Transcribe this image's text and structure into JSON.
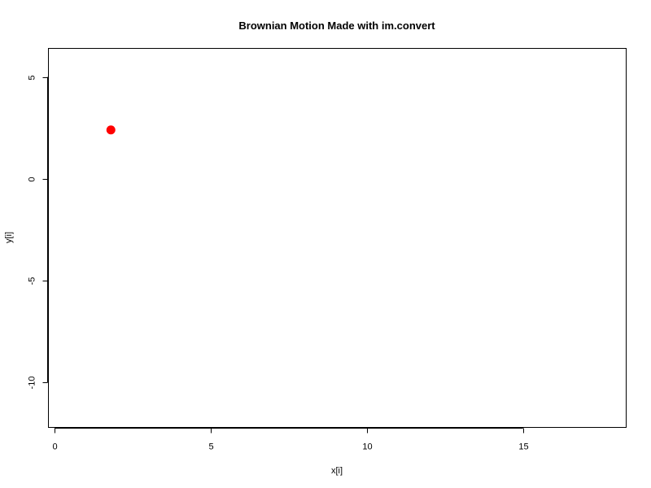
{
  "chart_data": {
    "type": "scatter",
    "title": "Brownian Motion Made with im.convert",
    "xlabel": "x[i]",
    "ylabel": "y[i]",
    "xlim": [
      -0.2,
      18.3
    ],
    "ylim": [
      -12.2,
      6.4
    ],
    "x_ticks": [
      0,
      5,
      10,
      15
    ],
    "y_ticks": [
      5,
      0,
      -5,
      -10
    ],
    "x_tick_labels": [
      "0",
      "5",
      "10",
      "15"
    ],
    "y_tick_labels": [
      "5",
      "0",
      "-5",
      "-10"
    ],
    "grid": false,
    "points": [
      {
        "x": 1.8,
        "y": 2.4
      }
    ],
    "point_color": "#ff0000"
  }
}
